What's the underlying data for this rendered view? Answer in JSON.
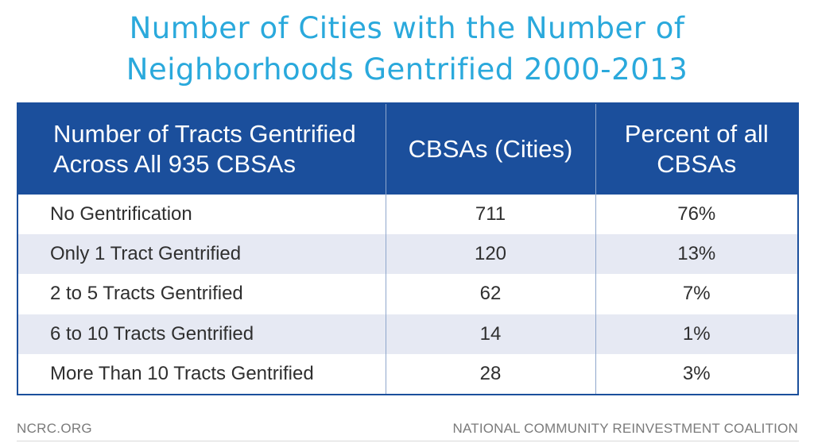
{
  "title": {
    "line1": "Number of Cities with the Number of",
    "line2": "Neighborhoods Gentrified 2000-2013"
  },
  "colors": {
    "title": "#2aa9dc",
    "header_bg": "#1b4f9c",
    "header_text": "#ffffff",
    "row_alt": "#e6e9f3",
    "row_text": "#2f2f2f",
    "footer_text": "#7a7a7a"
  },
  "chart_data": {
    "type": "table",
    "title": "Number of Cities with the Number of Neighborhoods Gentrified 2000-2013",
    "columns": [
      [
        "Number of Tracts Gentrified",
        "Across All 935 CBSAs"
      ],
      [
        "CBSAs  (Cities)"
      ],
      [
        "Percent of all",
        "CBSAs"
      ]
    ],
    "rows": [
      {
        "label": "No Gentrification",
        "cbsas": "711",
        "percent": "76%"
      },
      {
        "label": "Only 1 Tract Gentrified",
        "cbsas": "120",
        "percent": "13%"
      },
      {
        "label": "2 to 5 Tracts Gentrified",
        "cbsas": "62",
        "percent": "7%"
      },
      {
        "label": "6 to 10 Tracts Gentrified",
        "cbsas": "14",
        "percent": "1%"
      },
      {
        "label": "More Than 10 Tracts Gentrified",
        "cbsas": "28",
        "percent": "3%"
      }
    ]
  },
  "footer": {
    "left": "NCRC.ORG",
    "right": "NATIONAL COMMUNITY REINVESTMENT COALITION"
  }
}
